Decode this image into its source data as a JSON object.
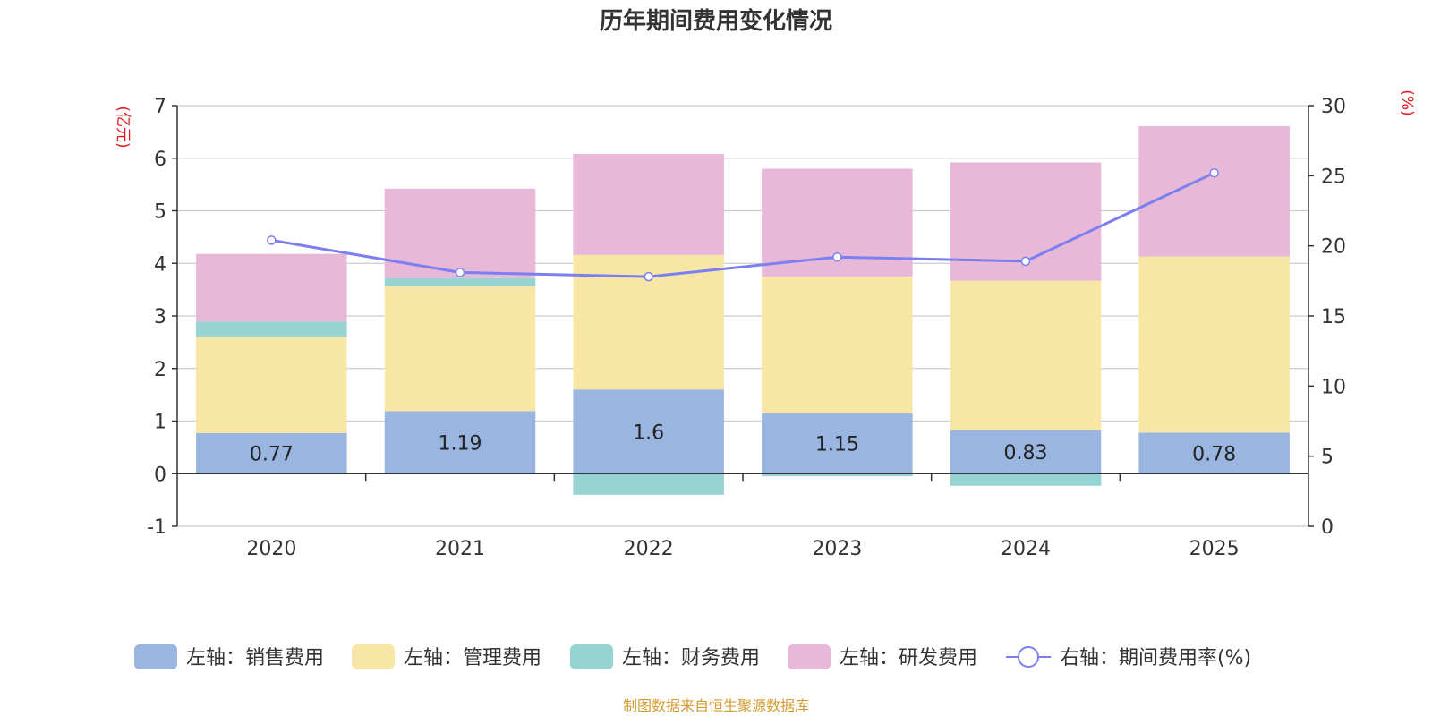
{
  "chart_data": {
    "type": "bar",
    "stacked": true,
    "title": "历年期间费用变化情况",
    "categories": [
      "2020",
      "2021",
      "2022",
      "2023",
      "2024",
      "2025"
    ],
    "y_left": {
      "unit": "(亿元)",
      "range": [
        -1,
        7
      ],
      "ticks": [
        -1,
        0,
        1,
        2,
        3,
        4,
        5,
        6,
        7
      ]
    },
    "y_right": {
      "unit": "(%)",
      "range": [
        0,
        30
      ],
      "ticks": [
        0,
        5,
        10,
        15,
        20,
        25,
        30
      ]
    },
    "series": [
      {
        "name": "左轴：销售费用",
        "axis": "left",
        "kind": "bar",
        "color": "#9ab6e0",
        "values": [
          0.77,
          1.19,
          1.6,
          1.15,
          0.83,
          0.78
        ],
        "labels": [
          "0.77",
          "1.19",
          "1.6",
          "1.15",
          "0.83",
          "0.78"
        ]
      },
      {
        "name": "左轴：管理费用",
        "axis": "left",
        "kind": "bar",
        "color": "#f7e6a6",
        "values": [
          1.84,
          2.37,
          2.56,
          2.6,
          2.84,
          3.35
        ]
      },
      {
        "name": "左轴：财务费用",
        "axis": "left",
        "kind": "bar",
        "color": "#97d3d3",
        "values": [
          0.28,
          0.16,
          -0.4,
          -0.05,
          -0.23,
          0.0
        ]
      },
      {
        "name": "左轴：研发费用",
        "axis": "left",
        "kind": "bar",
        "color": "#e8b8d8",
        "values": [
          1.29,
          1.7,
          1.92,
          2.05,
          2.25,
          2.48
        ]
      },
      {
        "name": "右轴：期间费用率(%)",
        "axis": "right",
        "kind": "line",
        "color": "#7b7ff0",
        "values": [
          20.4,
          18.1,
          17.8,
          19.2,
          18.9,
          25.2
        ]
      }
    ],
    "grid": true,
    "legend_position": "bottom"
  },
  "footer": {
    "source": "制图数据来自恒生聚源数据库"
  }
}
